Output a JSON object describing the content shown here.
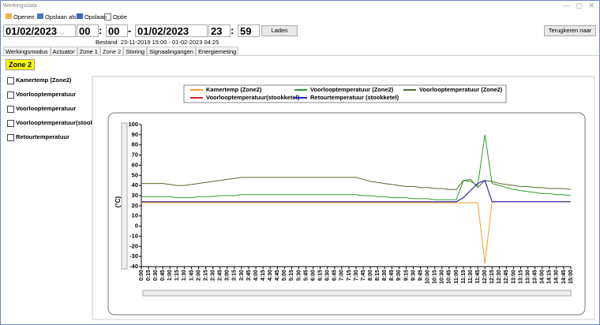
{
  "window": {
    "title": "Werkingsdata"
  },
  "toolbar": [
    "Openen",
    "Opslaan als",
    "Opslaan",
    "Optie"
  ],
  "range": {
    "start_date": "01/02/2023",
    "start_hour": "00",
    "start_minute": "00",
    "time_sep": ":",
    "range_sep": "-",
    "end_date": "01/02/2023",
    "end_hour": "23",
    "end_minute": "59",
    "load": "Laden",
    "back": "Terugkeren naar",
    "file_label": "Bestand",
    "file_range": "23-11-2019 15:00 - 01-02-2023 04:25"
  },
  "tabs": [
    "Werkingsmodus",
    "Actuator",
    "Zone 1",
    "Zone 2",
    "Storing",
    "Signaalingangen",
    "Energiemeting"
  ],
  "zone": "Zone 2",
  "checkboxes": [
    "Kamertemp (Zone2)",
    "Voorlooptemperatuur",
    "Voorlooptemperatuur",
    "Voorlooptemperatuur(stookk",
    "Retourtemperatuur"
  ],
  "chart_data": {
    "type": "line",
    "ylabel": "(°C)",
    "categories": [
      "0:00",
      "0:15",
      "0:30",
      "0:45",
      "1:00",
      "1:15",
      "1:30",
      "1:45",
      "2:00",
      "2:15",
      "2:30",
      "2:45",
      "3:00",
      "3:15",
      "3:30",
      "3:45",
      "4:00",
      "4:15",
      "4:30",
      "4:45",
      "5:00",
      "5:15",
      "5:30",
      "5:45",
      "6:00",
      "6:15",
      "6:30",
      "6:45",
      "7:00",
      "7:15",
      "7:30",
      "7:45",
      "8:00",
      "8:15",
      "8:30",
      "8:45",
      "9:00",
      "9:15",
      "9:30",
      "9:45",
      "10:00",
      "10:15",
      "10:30",
      "10:45",
      "11:00",
      "11:15",
      "11:30",
      "11:45",
      "12:00",
      "12:15",
      "12:30",
      "12:45",
      "13:00",
      "13:15",
      "13:30",
      "13:45",
      "14:00",
      "14:15",
      "14:30",
      "14:45",
      "15:00"
    ],
    "series": [
      {
        "name": "Voorlooptemperatuur(stookketel)",
        "color": "#e02020",
        "values": [
          24,
          24,
          24,
          24,
          24,
          24,
          24,
          24,
          24,
          24,
          24,
          24,
          24,
          24,
          24,
          24,
          24,
          24,
          24,
          24,
          24,
          24,
          24,
          24,
          24,
          24,
          24,
          24,
          24,
          24,
          24,
          24,
          24,
          24,
          24,
          24,
          24,
          24,
          24,
          24,
          24,
          24,
          24,
          24,
          24,
          28,
          35,
          42,
          45,
          24,
          24,
          24,
          24,
          24,
          24,
          24,
          24,
          24,
          24,
          24,
          24
        ]
      },
      {
        "name": "Kamertemp (Zone2)",
        "color": "#f0a030",
        "values": [
          23,
          23,
          23,
          23,
          23,
          23,
          23,
          23,
          23,
          23,
          23,
          23,
          23,
          23,
          23,
          23,
          23,
          23,
          23,
          23,
          23,
          23,
          23,
          23,
          23,
          23,
          23,
          23,
          23,
          23,
          23,
          23,
          23,
          23,
          23,
          23,
          23,
          23,
          23,
          23,
          23,
          23,
          23,
          23,
          23,
          23,
          23,
          23,
          -37,
          24,
          24,
          24,
          24,
          24,
          24,
          24,
          24,
          24,
          24,
          24,
          24
        ]
      },
      {
        "name": "Voorlooptemperatuur (Zone2)",
        "color": "#2e9a2e",
        "values": [
          29,
          29,
          29,
          29,
          29,
          28,
          28,
          28,
          29,
          29,
          29,
          30,
          30,
          30,
          31,
          31,
          31,
          31,
          31,
          31,
          31,
          31,
          31,
          31,
          31,
          31,
          31,
          31,
          31,
          31,
          31,
          30,
          30,
          29,
          29,
          28,
          28,
          28,
          27,
          27,
          27,
          26,
          26,
          26,
          26,
          45,
          44,
          40,
          90,
          42,
          40,
          38,
          36,
          35,
          34,
          33,
          32,
          32,
          31,
          31,
          30
        ]
      },
      {
        "name": "Voorlooptemperatuur (Zone2)",
        "color": "#556b2f",
        "values": [
          42,
          42,
          42,
          42,
          41,
          40,
          40,
          41,
          42,
          43,
          44,
          45,
          46,
          47,
          48,
          48,
          48,
          48,
          48,
          48,
          48,
          48,
          48,
          48,
          48,
          48,
          48,
          48,
          48,
          48,
          48,
          46,
          44,
          43,
          42,
          41,
          40,
          39,
          39,
          38,
          38,
          37,
          37,
          36,
          36,
          45,
          46,
          38,
          45,
          44,
          42,
          41,
          40,
          39,
          39,
          38,
          38,
          37,
          37,
          37,
          36
        ]
      },
      {
        "name": "Retourtemperatuur (stookketel)",
        "color": "#2020d0",
        "values": [
          24,
          24,
          24,
          24,
          24,
          24,
          24,
          24,
          24,
          24,
          24,
          24,
          24,
          24,
          24,
          24,
          24,
          24,
          24,
          24,
          24,
          24,
          24,
          24,
          24,
          24,
          24,
          24,
          24,
          24,
          24,
          24,
          24,
          24,
          24,
          24,
          24,
          24,
          24,
          24,
          24,
          24,
          24,
          24,
          24,
          28,
          35,
          42,
          45,
          24,
          24,
          24,
          24,
          24,
          24,
          24,
          24,
          24,
          24,
          24,
          24
        ]
      }
    ],
    "ylim": [
      -40,
      100
    ],
    "yticks": [
      -40,
      -30,
      -20,
      -10,
      0,
      10,
      20,
      30,
      40,
      50,
      60,
      70,
      80,
      90,
      100
    ],
    "grid": false,
    "legend": "top"
  }
}
